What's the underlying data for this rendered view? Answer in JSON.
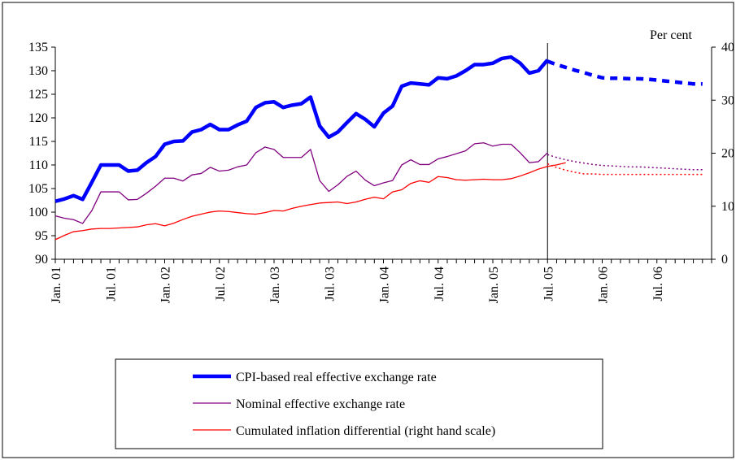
{
  "chart_data": {
    "type": "line",
    "title": "",
    "left_axis": {
      "ylim": [
        90,
        135
      ],
      "ticks": [
        90,
        95,
        100,
        105,
        110,
        115,
        120,
        125,
        130,
        135
      ]
    },
    "right_axis": {
      "label": "Per cent",
      "ylim": [
        0,
        40
      ],
      "ticks": [
        0,
        10,
        20,
        30,
        40
      ]
    },
    "x_axis": {
      "start": "Jan. 01",
      "end": "Dec. 06",
      "tick_labels": [
        "Jan. 01",
        "Jul. 01",
        "Jan. 02",
        "Jul. 02",
        "Jan. 03",
        "Jul. 03",
        "Jan. 04",
        "Jul. 04",
        "Jan. 05",
        "Jul. 05",
        "Jan. 06",
        "Jul. 06"
      ],
      "divider_at": "Jul. 05"
    },
    "grid": false,
    "legend_position": "bottom",
    "series": [
      {
        "name": "CPI-based real effective exchange rate",
        "axis": "left",
        "color": "#0000ff",
        "style": "thick",
        "values": [
          102.3,
          102.8,
          103.5,
          102.7,
          106.3,
          110.0,
          110.0,
          110.0,
          108.7,
          108.9,
          110.5,
          111.8,
          114.4,
          115.0,
          115.1,
          117.0,
          117.5,
          118.6,
          117.5,
          117.5,
          118.5,
          119.3,
          122.2,
          123.2,
          123.4,
          122.2,
          122.7,
          123.0,
          124.4,
          118.3,
          115.9,
          117.0,
          119.0,
          120.9,
          119.7,
          118.1,
          121.0,
          122.5,
          126.7,
          127.4,
          127.2,
          127.0,
          128.5,
          128.3,
          128.9,
          130.0,
          131.3,
          131.3,
          131.6,
          132.6,
          132.9,
          131.6,
          129.5,
          130.0,
          132.3
        ],
        "forecast": {
          "style": "dashed",
          "values": [
            132.0,
            131.3,
            130.7,
            130.1,
            129.6,
            129.0,
            128.5,
            128.4,
            128.4,
            128.3,
            128.3,
            128.2,
            128.0,
            127.8,
            127.6,
            127.4,
            127.2,
            127.2
          ]
        }
      },
      {
        "name": "Nominal effective exchange rate",
        "axis": "left",
        "color": "#800080",
        "style": "thin",
        "values": [
          99.2,
          98.7,
          98.4,
          97.6,
          100.3,
          104.3,
          104.3,
          104.3,
          102.6,
          102.7,
          104.0,
          105.5,
          107.2,
          107.2,
          106.6,
          107.9,
          108.2,
          109.5,
          108.7,
          108.9,
          109.6,
          110.0,
          112.6,
          113.8,
          113.3,
          111.6,
          111.6,
          111.6,
          113.3,
          106.7,
          104.4,
          105.8,
          107.6,
          108.7,
          106.8,
          105.6,
          106.2,
          106.7,
          110.0,
          111.1,
          110.1,
          110.1,
          111.3,
          111.8,
          112.4,
          113.0,
          114.5,
          114.7,
          114.0,
          114.4,
          114.4,
          112.6,
          110.5,
          110.7,
          112.6
        ],
        "forecast": {
          "style": "dotted",
          "values": [
            112.2,
            111.6,
            111.1,
            110.7,
            110.4,
            110.1,
            109.9,
            109.8,
            109.7,
            109.6,
            109.6,
            109.5,
            109.4,
            109.3,
            109.2,
            109.1,
            109.0,
            109.0
          ]
        }
      },
      {
        "name": "Cumulated inflation differential (right hand scale)",
        "axis": "right",
        "color": "#ff0000",
        "style": "thin",
        "values": [
          3.7,
          4.5,
          5.2,
          5.4,
          5.7,
          5.8,
          5.8,
          5.9,
          6.0,
          6.1,
          6.5,
          6.7,
          6.3,
          6.8,
          7.5,
          8.1,
          8.5,
          8.9,
          9.1,
          9.0,
          8.8,
          8.6,
          8.5,
          8.8,
          9.2,
          9.1,
          9.6,
          10.0,
          10.3,
          10.6,
          10.7,
          10.8,
          10.5,
          10.8,
          11.3,
          11.7,
          11.4,
          12.7,
          13.1,
          14.3,
          14.8,
          14.5,
          15.6,
          15.4,
          15.0,
          14.9,
          15.0,
          15.1,
          15.0,
          15.0,
          15.2,
          15.7,
          16.3,
          17.0,
          17.5,
          17.8,
          18.2
        ],
        "forecast": {
          "style": "dotted",
          "values": [
            18.0,
            17.3,
            16.8,
            16.4,
            16.1,
            16.1,
            16.0,
            16.0,
            16.0,
            16.0,
            16.0,
            16.0,
            16.0,
            16.0,
            16.0,
            16.0,
            16.0,
            16.0
          ]
        }
      }
    ]
  }
}
